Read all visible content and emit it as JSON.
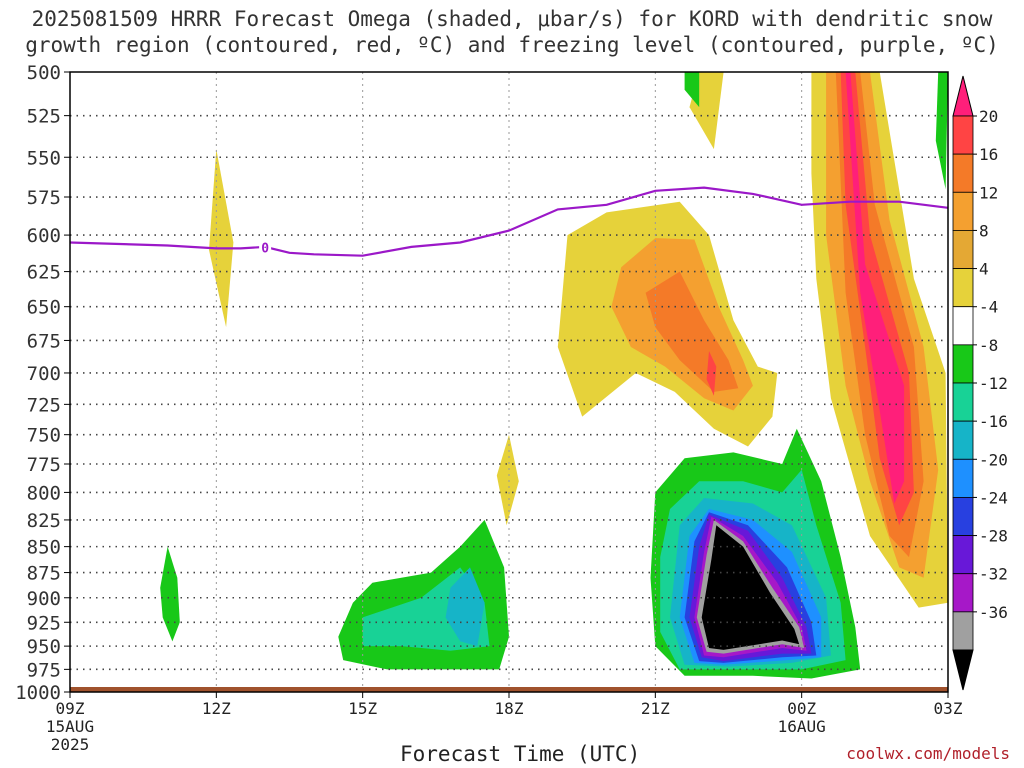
{
  "chart_data": {
    "type": "heatmap",
    "title_line1": "2025081509 HRRR Forecast Omega (shaded, μbar/s) for KORD with dendritic snow",
    "title_line2": "growth region (contoured, red, ºC) and freezing level (contoured, purple, ºC)",
    "xlabel": "Forecast Time (UTC)",
    "credit": "coolwx.com/models",
    "x_ticks": [
      {
        "h": 0,
        "label": "09Z",
        "sub1": "15AUG",
        "sub2": "2025"
      },
      {
        "h": 3,
        "label": "12Z",
        "sub1": "",
        "sub2": ""
      },
      {
        "h": 6,
        "label": "15Z",
        "sub1": "",
        "sub2": ""
      },
      {
        "h": 9,
        "label": "18Z",
        "sub1": "",
        "sub2": ""
      },
      {
        "h": 12,
        "label": "21Z",
        "sub1": "",
        "sub2": ""
      },
      {
        "h": 15,
        "label": "00Z",
        "sub1": "16AUG",
        "sub2": ""
      },
      {
        "h": 18,
        "label": "03Z",
        "sub1": "",
        "sub2": ""
      }
    ],
    "xlim_hours": [
      0,
      18
    ],
    "y_ticks": [
      500,
      525,
      550,
      575,
      600,
      625,
      650,
      675,
      700,
      725,
      750,
      775,
      800,
      825,
      850,
      875,
      900,
      925,
      950,
      975,
      1000
    ],
    "ylim_hpa": [
      500,
      1000
    ],
    "y_scale": "log-pressure",
    "colorbar": {
      "labels": [
        "20",
        "16",
        "12",
        "8",
        "4",
        "-4",
        "-8",
        "-12",
        "-16",
        "-20",
        "-24",
        "-28",
        "-32",
        "-36"
      ],
      "colors": [
        "#ff1f7a",
        "#ff4444",
        "#f47a28",
        "#f4a030",
        "#e4a834",
        "#e6d23a",
        "#ffffff",
        "#18c818",
        "#18d296",
        "#16b4c8",
        "#1e90ff",
        "#2840e0",
        "#6818d8",
        "#a618c8",
        "#a0a0a0",
        "#000000"
      ]
    },
    "freezing_level": {
      "label": "0",
      "x_hours": [
        0,
        2,
        3,
        3.5,
        4,
        4.5,
        5,
        6,
        7,
        8,
        9,
        10,
        11,
        12,
        13,
        14,
        15,
        16,
        17,
        18
      ],
      "p_hpa": [
        605,
        607,
        609,
        609,
        608,
        612,
        613,
        614,
        608,
        605,
        597,
        583,
        580,
        571,
        569,
        573,
        580,
        578,
        578,
        582
      ]
    },
    "shaded_regions": [
      {
        "class": "omega 4..8 / 8..12",
        "color": "#e6d23a",
        "outline": [
          [
            12.95,
            500
          ],
          [
            12.75,
            512
          ],
          [
            13.05,
            512
          ]
        ]
      },
      {
        "class": "omega -8..-4 (12Z band)",
        "color": "#e6d23a",
        "outline": [
          [
            3.0,
            545
          ],
          [
            3.35,
            605
          ],
          [
            3.2,
            665
          ],
          [
            2.85,
            610
          ]
        ]
      },
      {
        "class": "omega 4..8 (17Z blob)",
        "color": "#e6d23a",
        "outline": [
          [
            9.0,
            750
          ],
          [
            9.2,
            790
          ],
          [
            8.95,
            830
          ],
          [
            8.75,
            785
          ]
        ]
      },
      {
        "class": "omega 4..8 (22Z top)",
        "color": "#e6d23a",
        "outline": [
          [
            12.9,
            500
          ],
          [
            13.4,
            500
          ],
          [
            13.2,
            545
          ],
          [
            12.7,
            520
          ]
        ]
      },
      {
        "class": "omega -8..-4 (21Z top)",
        "color": "#18c818",
        "outline": [
          [
            12.6,
            500
          ],
          [
            12.9,
            500
          ],
          [
            12.9,
            520
          ],
          [
            12.6,
            510
          ]
        ]
      },
      {
        "class": "omega -8..-4 (03Z edge)",
        "color": "#18c818",
        "outline": [
          [
            17.8,
            500
          ],
          [
            18.0,
            500
          ],
          [
            17.95,
            570
          ],
          [
            17.75,
            540
          ]
        ]
      }
    ]
  },
  "colors": {
    "freezing_line": "#9b18c8",
    "grid": "#444444",
    "ground": "#a0522d"
  }
}
